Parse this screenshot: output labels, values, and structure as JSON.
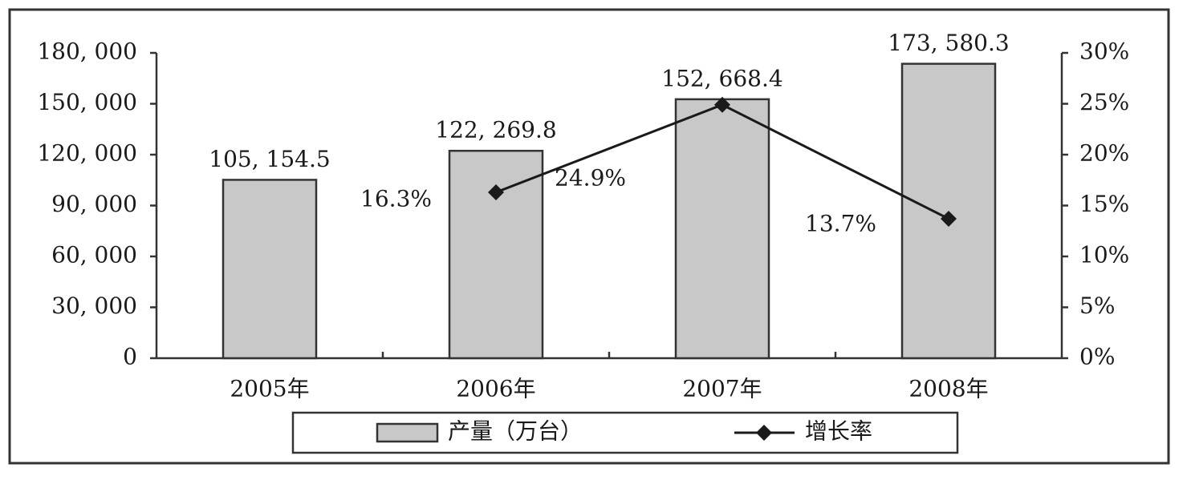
{
  "chart_data": {
    "type": "bar",
    "categories": [
      "2005年",
      "2006年",
      "2007年",
      "2008年"
    ],
    "series": [
      {
        "name": "产量（万台）",
        "type": "bar",
        "color": "#c8c8c8",
        "values": [
          105154.5,
          122269.8,
          152668.4,
          173580.3
        ],
        "value_labels": [
          "105, 154.5",
          "122, 269.8",
          "152, 668.4",
          "173, 580.3"
        ]
      },
      {
        "name": "增长率",
        "type": "line",
        "color": "#1a1a1a",
        "axis": "y2",
        "values": [
          null,
          16.3,
          24.9,
          13.7
        ],
        "value_labels": [
          null,
          "16.3%",
          "24.9%",
          "13.7%"
        ]
      }
    ],
    "ylim": [
      0,
      180000
    ],
    "yticks": [
      0,
      {
        "value": 30000,
        "label": "30, 000"
      },
      {
        "value": 60000,
        "label": "60, 000"
      },
      {
        "value": 90000,
        "label": "90, 000"
      },
      {
        "value": 120000,
        "label": "120, 000"
      },
      {
        "value": 150000,
        "label": "150, 000"
      },
      {
        "value": 180000,
        "label": "180, 000"
      }
    ],
    "y2lim": [
      0,
      30
    ],
    "y2ticks": [
      {
        "value": 0,
        "label": "0%"
      },
      {
        "value": 5,
        "label": "5%"
      },
      {
        "value": 10,
        "label": "10%"
      },
      {
        "value": 15,
        "label": "15%"
      },
      {
        "value": 20,
        "label": "20%"
      },
      {
        "value": 25,
        "label": "25%"
      },
      {
        "value": 30,
        "label": "30%"
      }
    ],
    "grid": false,
    "legend": "bottom"
  }
}
